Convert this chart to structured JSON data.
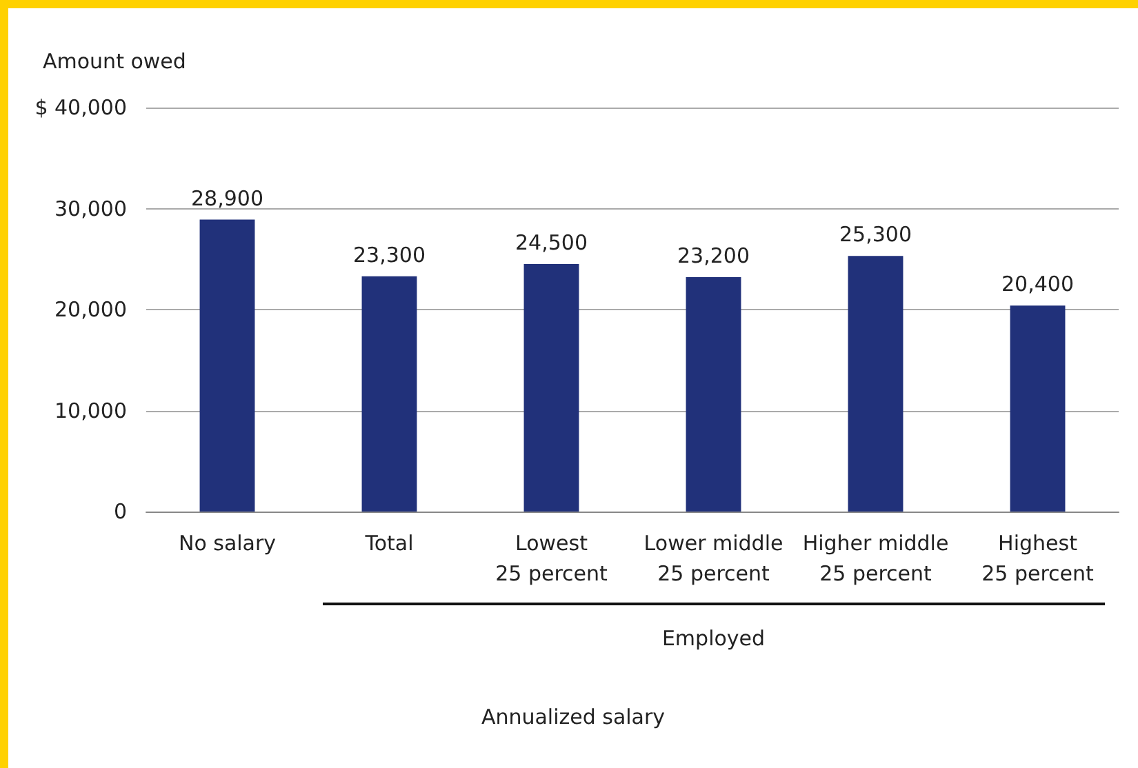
{
  "chart_data": {
    "type": "bar",
    "ylabel": "Amount owed",
    "categories": [
      "No salary",
      "Total",
      "Lowest\n25 percent",
      "Lower middle\n25 percent",
      "Higher middle\n25 percent",
      "Highest\n25 percent"
    ],
    "values": [
      28900,
      23300,
      24500,
      23200,
      25300,
      20400
    ],
    "color": "#21317a",
    "value_labels": [
      "28,900",
      "23,300",
      "24,500",
      "23,200",
      "25,300",
      "20,400"
    ],
    "ylim": [
      0,
      40000
    ],
    "yticks": [
      {
        "value": 0,
        "label": "0"
      },
      {
        "value": 10000,
        "label": "10,000"
      },
      {
        "value": 20000,
        "label": "20,000"
      },
      {
        "value": 30000,
        "label": "30,000"
      },
      {
        "value": 40000,
        "label": "$ 40,000"
      }
    ],
    "grid": "y",
    "annotations": [
      "Employed",
      "Annualized salary"
    ]
  }
}
